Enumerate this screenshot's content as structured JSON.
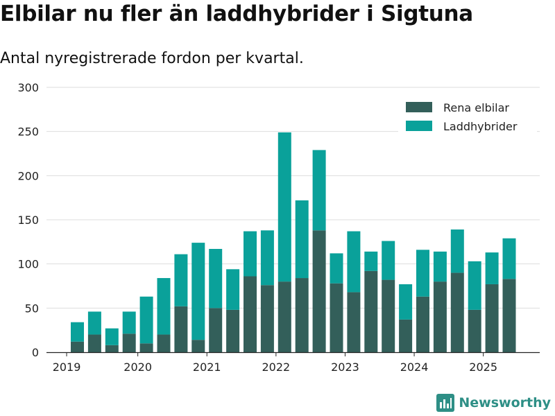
{
  "header": {
    "title": "Elbilar nu fler än laddhybrider i Sigtuna",
    "subtitle": "Antal nyregistrerade fordon per kvartal."
  },
  "brand": {
    "name": "Newsworthy",
    "icon": "bar-chart-logo-icon"
  },
  "colors": {
    "elbilar": "#335f5a",
    "laddhybrider": "#0aa19a",
    "grid": "#dddddd",
    "brand": "#2e8f86"
  },
  "chart_data": {
    "type": "bar",
    "stacked": true,
    "title": "Elbilar nu fler än laddhybrider i Sigtuna",
    "subtitle": "Antal nyregistrerade fordon per kvartal.",
    "xlabel": "",
    "ylabel": "",
    "ylim": [
      0,
      300
    ],
    "yticks": [
      0,
      50,
      100,
      150,
      200,
      250,
      300
    ],
    "xticks": [
      {
        "label": "2019",
        "index": 0
      },
      {
        "label": "2020",
        "index": 4
      },
      {
        "label": "2021",
        "index": 8
      },
      {
        "label": "2022",
        "index": 12
      },
      {
        "label": "2023",
        "index": 16
      },
      {
        "label": "2024",
        "index": 20
      },
      {
        "label": "2025",
        "index": 24
      }
    ],
    "categories": [
      "2019 Q2",
      "2019 Q3",
      "2019 Q4",
      "2020 Q1",
      "2020 Q2",
      "2020 Q3",
      "2020 Q4",
      "2021 Q1",
      "2021 Q2",
      "2021 Q3",
      "2021 Q4",
      "2022 Q1",
      "2022 Q2",
      "2022 Q3",
      "2022 Q4",
      "2023 Q1",
      "2023 Q2",
      "2023 Q3",
      "2023 Q4",
      "2024 Q1",
      "2024 Q2",
      "2024 Q3",
      "2024 Q4",
      "2025 Q1",
      "2025 Q2",
      "2025 Q3"
    ],
    "series": [
      {
        "name": "Rena elbilar",
        "values": [
          12,
          20,
          8,
          21,
          10,
          20,
          52,
          14,
          50,
          48,
          86,
          76,
          80,
          84,
          138,
          78,
          68,
          92,
          82,
          37,
          63,
          80,
          90,
          48,
          77,
          83
        ]
      },
      {
        "name": "Laddhybrider",
        "values": [
          22,
          26,
          19,
          25,
          53,
          64,
          59,
          110,
          67,
          46,
          51,
          62,
          169,
          88,
          91,
          34,
          69,
          22,
          44,
          40,
          53,
          34,
          49,
          55,
          36,
          46
        ]
      }
    ],
    "legend": {
      "position": "top-right",
      "entries": [
        "Rena elbilar",
        "Laddhybrider"
      ]
    }
  }
}
